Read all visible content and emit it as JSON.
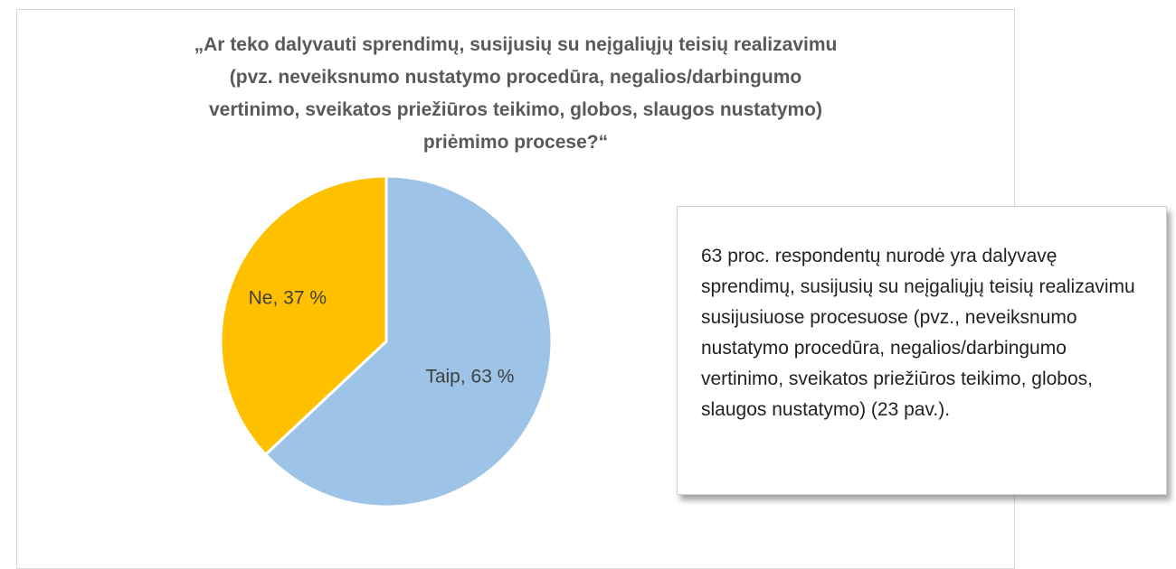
{
  "chart_data": {
    "type": "pie",
    "title": "„Ar teko dalyvauti sprendimų, susijusių su neįgaliųjų teisių realizavimu\n(pvz. neveiksnumo nustatymo procedūra, negalios/darbingumo\nvertinimo, sveikatos priežiūros teikimo, globos, slaugos nustatymo)\npriėmimo procese?“",
    "values": [
      63,
      37
    ],
    "value_labels": [
      "Taip, 63 %",
      "Ne, 37 %"
    ],
    "colors": [
      "#9dc3e6",
      "#ffc000"
    ],
    "annotation": "63 proc. respondentų nurodė yra dalyvavę sprendimų, susijusių su neįgaliųjų teisių realizavimu susijusiuose procesuose (pvz., neveiksnumo nustatymo procedūra, negalios/darbingumo vertinimo, sveikatos priežiūros teikimo, globos, slaugos nustatymo) (23 pav.)."
  }
}
